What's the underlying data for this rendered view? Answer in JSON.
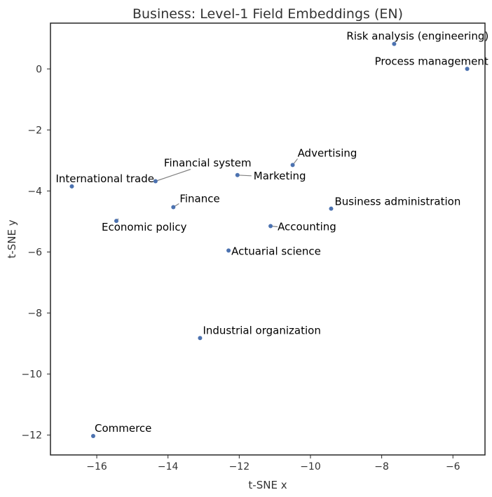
{
  "chart_data": {
    "type": "scatter",
    "title": "Business: Level-1 Field Embeddings (EN)",
    "xlabel": "t-SNE x",
    "ylabel": "t-SNE y",
    "xlim": [
      -17.3,
      -5.1
    ],
    "ylim": [
      -12.65,
      1.5
    ],
    "xticks": [
      -16,
      -14,
      -12,
      -10,
      -8,
      -6
    ],
    "yticks": [
      0,
      -2,
      -4,
      -6,
      -8,
      -10,
      -12
    ],
    "grid": false,
    "point_color": "#4c72b0",
    "points": [
      {
        "label": "Risk analysis (engineering)",
        "x": -7.65,
        "y": 0.82
      },
      {
        "label": "Process management",
        "x": -5.6,
        "y": 0.0
      },
      {
        "label": "Advertising",
        "x": -10.5,
        "y": -3.15
      },
      {
        "label": "Marketing",
        "x": -12.05,
        "y": -3.48
      },
      {
        "label": "Financial system",
        "x": -14.35,
        "y": -3.68
      },
      {
        "label": "International trade",
        "x": -16.7,
        "y": -3.85
      },
      {
        "label": "Finance",
        "x": -13.85,
        "y": -4.53
      },
      {
        "label": "Business administration",
        "x": -9.42,
        "y": -4.58
      },
      {
        "label": "Economic policy",
        "x": -15.45,
        "y": -4.98
      },
      {
        "label": "Accounting",
        "x": -11.12,
        "y": -5.15
      },
      {
        "label": "Actuarial science",
        "x": -12.3,
        "y": -5.95
      },
      {
        "label": "Industrial organization",
        "x": -13.1,
        "y": -8.82
      },
      {
        "label": "Commerce",
        "x": -16.1,
        "y": -12.03
      }
    ]
  }
}
